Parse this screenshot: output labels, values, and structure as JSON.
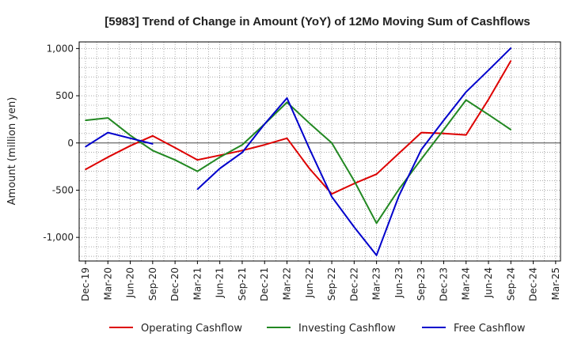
{
  "chart_data": {
    "type": "line",
    "title": "[5983]  Trend of Change in Amount (YoY) of 12Mo Moving Sum of Cashflows",
    "xlabel": "",
    "ylabel": "Amount (million yen)",
    "ylim": [
      -1250,
      1070
    ],
    "yticks": [
      -1000,
      -500,
      0,
      500,
      1000
    ],
    "ytick_labels": [
      "-1,000",
      "-500",
      "0",
      "500",
      "1,000"
    ],
    "grid": true,
    "legend_position": "bottom",
    "categories": [
      "Dec-19",
      "Mar-20",
      "Jun-20",
      "Sep-20",
      "Dec-20",
      "Mar-21",
      "Jun-21",
      "Sep-21",
      "Dec-21",
      "Mar-22",
      "Jun-22",
      "Sep-22",
      "Dec-22",
      "Mar-23",
      "Jun-23",
      "Sep-23",
      "Dec-23",
      "Mar-24",
      "Jun-24",
      "Sep-24",
      "Dec-24",
      "Mar-25"
    ],
    "series": [
      {
        "name": "Operating Cashflow",
        "color": "#dd0000",
        "values": [
          -280,
          -150,
          -30,
          75,
          -50,
          -180,
          -130,
          -80,
          -20,
          50,
          -270,
          -540,
          -430,
          -330,
          -110,
          110,
          100,
          85,
          460,
          870,
          null,
          null
        ]
      },
      {
        "name": "Investing Cashflow",
        "color": "#228822",
        "values": [
          240,
          265,
          80,
          -80,
          -180,
          -300,
          -150,
          -20,
          200,
          430,
          210,
          0,
          -400,
          -850,
          -490,
          -170,
          140,
          455,
          300,
          140,
          null,
          null
        ]
      },
      {
        "name": "Free Cashflow",
        "color": "#0000cc",
        "values": [
          -40,
          110,
          50,
          -10,
          null,
          -490,
          -270,
          -100,
          200,
          475,
          -60,
          -570,
          -890,
          -1190,
          -560,
          -70,
          240,
          540,
          770,
          1005,
          null,
          null
        ]
      }
    ]
  }
}
